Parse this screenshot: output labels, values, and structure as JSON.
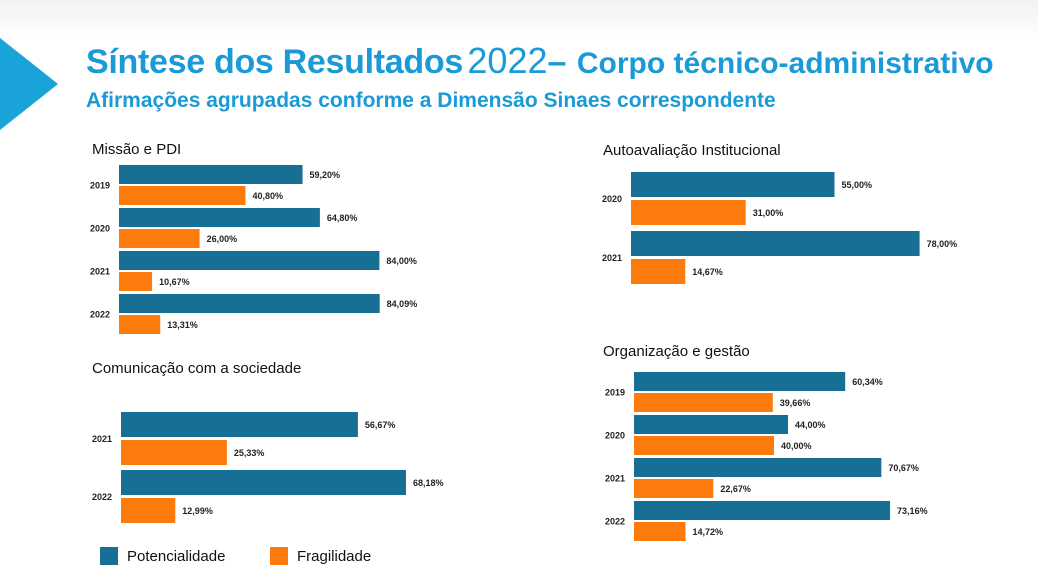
{
  "header": {
    "title_main": "Síntese dos Resultados",
    "title_year": "2022",
    "title_sep": "–",
    "title_sub": "Corpo técnico-administrativo",
    "subtitle": "Afirmações agrupadas conforme a Dimensão Sinaes correspondente"
  },
  "colors": {
    "potencialidade": "#176f93",
    "fragilidade": "#fd7b0c",
    "title": "#1a9ad6"
  },
  "legend": {
    "potencialidade": "Potencialidade",
    "fragilidade": "Fragilidade"
  },
  "chart_data": [
    {
      "type": "bar",
      "orientation": "horizontal",
      "title": "Missão e PDI",
      "categories": [
        "2019",
        "2020",
        "2021",
        "2022"
      ],
      "series": [
        {
          "name": "Potencialidade",
          "values": [
            59.2,
            64.8,
            84.0,
            84.09
          ],
          "labels": [
            "59,20%",
            "64,80%",
            "84,00%",
            "84,09%"
          ]
        },
        {
          "name": "Fragilidade",
          "values": [
            40.8,
            26.0,
            10.67,
            13.31
          ],
          "labels": [
            "40,80%",
            "26,00%",
            "10,67%",
            "13,31%"
          ]
        }
      ]
    },
    {
      "type": "bar",
      "orientation": "horizontal",
      "title": "Autoavaliação Institucional",
      "categories": [
        "2020",
        "2021"
      ],
      "series": [
        {
          "name": "Potencialidade",
          "values": [
            55.0,
            78.0
          ],
          "labels": [
            "55,00%",
            "78,00%"
          ]
        },
        {
          "name": "Fragilidade",
          "values": [
            31.0,
            14.67
          ],
          "labels": [
            "31,00%",
            "14,67%"
          ]
        }
      ]
    },
    {
      "type": "bar",
      "orientation": "horizontal",
      "title": "Comunicação com a sociedade",
      "categories": [
        "2021",
        "2022"
      ],
      "series": [
        {
          "name": "Potencialidade",
          "values": [
            56.67,
            68.18
          ],
          "labels": [
            "56,67%",
            "68,18%"
          ]
        },
        {
          "name": "Fragilidade",
          "values": [
            25.33,
            12.99
          ],
          "labels": [
            "25,33%",
            "12,99%"
          ]
        }
      ]
    },
    {
      "type": "bar",
      "orientation": "horizontal",
      "title": "Organização e gestão",
      "categories": [
        "2019",
        "2020",
        "2021",
        "2022"
      ],
      "series": [
        {
          "name": "Potencialidade",
          "values": [
            60.34,
            44.0,
            70.67,
            73.16
          ],
          "labels": [
            "60,34%",
            "44,00%",
            "70,67%",
            "73,16%"
          ]
        },
        {
          "name": "Fragilidade",
          "values": [
            39.66,
            40.0,
            22.67,
            14.72
          ],
          "labels": [
            "39,66%",
            "40,00%",
            "22,67%",
            "14,72%"
          ]
        }
      ]
    }
  ]
}
